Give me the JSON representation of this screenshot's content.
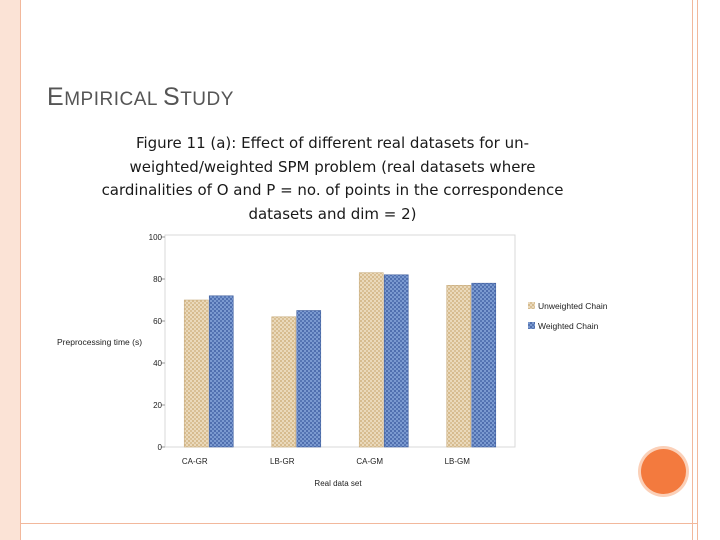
{
  "slide": {
    "title_first": "E",
    "title_rest_1": "MPIRICAL ",
    "title_second": "S",
    "title_rest_2": "TUDY"
  },
  "chart_data": {
    "type": "bar",
    "title": "Figure 11 (a): Effect of different real datasets for un-weighted/weighted SPM problem (real datasets where cardinalities of O and P = no. of points in the correspondence datasets and dim = 2)",
    "xlabel": "Real data set",
    "ylabel": "Preprocessing time (s)",
    "categories": [
      "CA-GR",
      "LB-GR",
      "CA-GM",
      "LB-GM"
    ],
    "series": [
      {
        "name": "Unweighted Chain",
        "values": [
          70,
          62,
          83,
          77
        ]
      },
      {
        "name": "Weighted Chain",
        "values": [
          72,
          65,
          82,
          78
        ]
      }
    ],
    "ylim": [
      0,
      100
    ],
    "yticks": [
      0,
      20,
      40,
      60,
      80,
      100
    ],
    "grid": false,
    "legend": "right",
    "colors": {
      "Unweighted Chain": "#e6d2b0",
      "Weighted Chain": "#6f8fc8"
    }
  }
}
